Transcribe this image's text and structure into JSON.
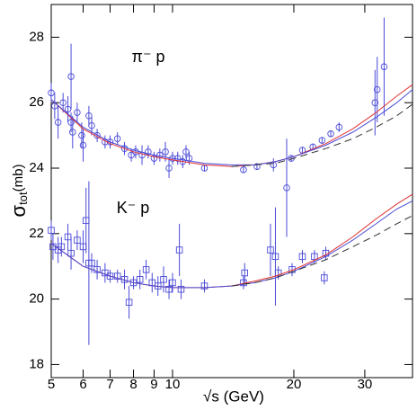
{
  "chart_data": {
    "type": "scatter",
    "xlog": true,
    "xlim": [
      5,
      39.4
    ],
    "ylim": [
      17.6,
      29
    ],
    "xticks": [
      5,
      6,
      7,
      8,
      9,
      10,
      20,
      30
    ],
    "yticks": [
      18,
      20,
      22,
      24,
      26,
      28
    ],
    "xlabel": "√s  (GeV)",
    "ylabel": {
      "symbol": "σ",
      "subscript": "tot",
      "unit": "(mb)"
    },
    "annotations": [
      "π⁻ p",
      "K⁻ p"
    ],
    "series": [
      {
        "marker": "circle",
        "color": "#4a4ad8",
        "x": [
          5.0,
          5.1,
          5.2,
          5.35,
          5.5,
          5.6,
          5.6,
          5.65,
          5.8,
          5.95,
          6.0,
          6.2,
          6.3,
          6.5,
          6.8,
          7.0,
          7.3,
          7.6,
          7.9,
          8.1,
          8.4,
          8.7,
          9.0,
          9.3,
          9.6,
          9.8,
          10.0,
          10.3,
          10.6,
          10.8,
          11.0,
          12.0,
          15.0,
          16.2,
          17.8,
          19.2,
          19.7,
          21.0,
          22.3,
          23.5,
          24.7,
          25.9,
          31.8,
          32.2,
          33.5
        ],
        "values": [
          26.3,
          25.9,
          25.4,
          26.0,
          25.8,
          26.8,
          25.4,
          25.1,
          25.7,
          25.0,
          24.7,
          25.6,
          25.3,
          25.0,
          24.8,
          24.8,
          24.9,
          24.6,
          24.4,
          24.5,
          24.4,
          24.5,
          24.3,
          24.4,
          24.5,
          24.0,
          24.3,
          24.3,
          24.2,
          24.5,
          24.3,
          24.0,
          23.95,
          24.05,
          24.1,
          23.4,
          24.3,
          24.55,
          24.65,
          24.85,
          25.05,
          25.25,
          26.0,
          26.4,
          27.1
        ],
        "errors": [
          0.3,
          0.4,
          0.5,
          0.3,
          0.4,
          1.0,
          0.3,
          0.5,
          0.3,
          0.4,
          0.5,
          0.3,
          0.3,
          0.2,
          0.2,
          0.2,
          0.2,
          0.2,
          0.2,
          0.2,
          0.3,
          0.2,
          0.2,
          0.2,
          0.3,
          0.3,
          0.2,
          0.2,
          0.2,
          0.2,
          0.2,
          0.1,
          0.1,
          0.1,
          0.2,
          1.5,
          0.1,
          0.1,
          0.1,
          0.1,
          0.1,
          0.15,
          1.0,
          1.0,
          1.5
        ]
      },
      {
        "marker": "square",
        "color": "#4a4ad8",
        "x": [
          5.0,
          5.05,
          5.2,
          5.3,
          5.5,
          5.6,
          5.8,
          6.0,
          6.1,
          6.2,
          6.3,
          6.5,
          6.8,
          7.0,
          7.3,
          7.6,
          7.8,
          8.0,
          8.3,
          8.6,
          8.9,
          9.2,
          9.5,
          9.8,
          10.0,
          10.4,
          10.5,
          12.0,
          15.0,
          15.1,
          17.5,
          18.0,
          18.3,
          19.8,
          21.0,
          22.5,
          23.8,
          24.0
        ],
        "values": [
          22.1,
          21.6,
          21.5,
          21.6,
          21.9,
          21.4,
          21.8,
          21.6,
          22.4,
          21.1,
          21.1,
          20.9,
          20.8,
          20.7,
          20.7,
          20.6,
          19.9,
          20.5,
          20.6,
          20.9,
          20.5,
          20.4,
          20.6,
          20.3,
          20.5,
          21.5,
          20.3,
          20.4,
          20.5,
          20.8,
          21.5,
          21.3,
          20.8,
          20.9,
          21.3,
          21.3,
          20.65,
          21.4
        ],
        "errors": [
          0.3,
          0.4,
          0.4,
          0.3,
          0.4,
          0.5,
          0.3,
          0.5,
          1.0,
          2.5,
          0.3,
          0.3,
          0.3,
          0.2,
          0.2,
          0.3,
          0.5,
          0.2,
          0.3,
          0.3,
          0.3,
          0.3,
          0.4,
          0.3,
          0.3,
          0.8,
          0.3,
          0.2,
          0.2,
          0.3,
          0.8,
          1.5,
          0.2,
          0.2,
          0.2,
          0.2,
          0.2,
          0.2
        ]
      },
      {
        "marker": "none",
        "color": "#e03030",
        "x": [
          5,
          6,
          7,
          8,
          9,
          10,
          12,
          14,
          16,
          18,
          20,
          24,
          28,
          32,
          36,
          39.4
        ],
        "values": [
          26.1,
          25.2,
          24.75,
          24.5,
          24.35,
          24.25,
          24.1,
          24.05,
          24.1,
          24.2,
          24.35,
          24.75,
          25.2,
          25.7,
          26.2,
          26.55
        ]
      },
      {
        "marker": "none",
        "color": "#4a4ad8",
        "x": [
          5,
          6,
          7,
          8,
          9,
          10,
          12,
          14,
          16,
          18,
          20,
          24,
          28,
          32,
          36,
          39.4
        ],
        "values": [
          26.1,
          25.25,
          24.8,
          24.55,
          24.4,
          24.3,
          24.15,
          24.1,
          24.1,
          24.2,
          24.35,
          24.7,
          25.1,
          25.55,
          26.0,
          26.4
        ]
      },
      {
        "marker": "none",
        "color": "#333333",
        "dash": true,
        "x": [
          14,
          16,
          18,
          20,
          24,
          28,
          32,
          36,
          39.4
        ],
        "values": [
          24.05,
          24.1,
          24.15,
          24.3,
          24.6,
          24.9,
          25.25,
          25.6,
          25.95
        ]
      },
      {
        "marker": "none",
        "color": "#e03030",
        "x": [
          5,
          6,
          7,
          8,
          9,
          10,
          12,
          14,
          16,
          18,
          20,
          24,
          28,
          32,
          36,
          39.4
        ],
        "values": [
          21.7,
          21.0,
          20.7,
          20.5,
          20.4,
          20.35,
          20.35,
          20.4,
          20.55,
          20.7,
          20.9,
          21.35,
          21.9,
          22.45,
          22.9,
          23.2
        ]
      },
      {
        "marker": "none",
        "color": "#4a4ad8",
        "x": [
          5,
          6,
          7,
          8,
          9,
          10,
          12,
          14,
          16,
          18,
          20,
          24,
          28,
          32,
          36,
          39.4
        ],
        "values": [
          21.7,
          21.0,
          20.7,
          20.5,
          20.4,
          20.35,
          20.35,
          20.4,
          20.5,
          20.65,
          20.85,
          21.3,
          21.8,
          22.3,
          22.75,
          23.0
        ]
      },
      {
        "marker": "none",
        "color": "#333333",
        "dash": true,
        "x": [
          14,
          16,
          18,
          20,
          24,
          28,
          32,
          36,
          39.4
        ],
        "values": [
          20.4,
          20.5,
          20.65,
          20.85,
          21.2,
          21.6,
          21.95,
          22.3,
          22.55
        ]
      }
    ]
  }
}
